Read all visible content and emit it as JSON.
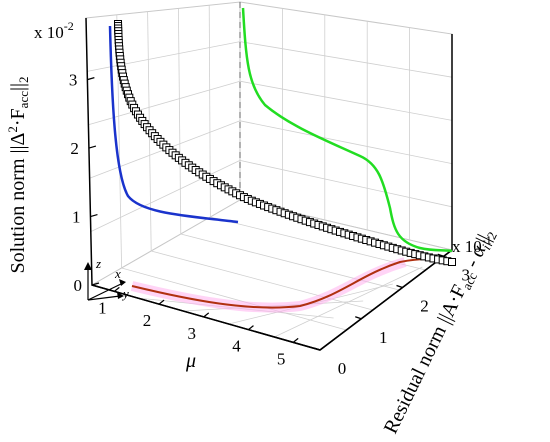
{
  "chart_data": {
    "type": "line",
    "subtype": "3d-curve-with-projections",
    "grid": true,
    "colors": {
      "main_curve": "#cc1f1f",
      "markers": "#000000",
      "projection_mu_residual": "#1a33cc",
      "projection_mu_solution": "#22dd22",
      "projection_residual_solution": "#b03010",
      "highlight": "#ff99ee"
    },
    "axes": {
      "z": {
        "label": "Solution norm ||Δ²·F_acc||₂",
        "label_prefix": "Solution norm ||Δ",
        "label_sup": "2",
        "label_mid": "·F",
        "label_sub": "acc",
        "label_suffix": "||",
        "label_sub2": "2",
        "multiplier": "x 10",
        "multiplier_exp": "-2",
        "ticks": [
          "0",
          "1",
          "2",
          "3"
        ],
        "range": [
          0,
          3.9
        ]
      },
      "x": {
        "label": "μ",
        "ticks": [
          "1",
          "2",
          "3",
          "4",
          "5"
        ],
        "range": [
          0.5,
          5.6
        ]
      },
      "y": {
        "label": "Residual norm ||A·F_acc - α_i||₂",
        "label_prefix": "Residual norm ||A·F",
        "label_sub": "acc",
        "label_mid": " - α",
        "label_sub_i": "i",
        "label_suffix": "||",
        "label_sub2": "2",
        "multiplier": "x 10",
        "multiplier_exp": "-1",
        "ticks": [
          "0",
          "1",
          "2",
          "3"
        ],
        "range": [
          0,
          3.2
        ]
      }
    },
    "triad": {
      "z": "z",
      "x": "x",
      "y": "y"
    },
    "series": [
      {
        "style": "3d curve with open square markers",
        "mu": [
          0.55,
          0.6,
          0.7,
          0.8,
          1.0,
          1.2,
          1.5,
          1.8,
          2.1,
          2.4,
          2.7,
          3.0,
          3.3,
          3.5,
          3.7,
          3.9,
          4.05,
          4.2,
          4.35,
          4.5,
          4.65,
          4.8,
          5.0,
          5.2,
          5.45
        ],
        "residual": [
          0.1,
          0.1,
          0.12,
          0.15,
          0.22,
          0.3,
          0.45,
          0.6,
          0.75,
          0.9,
          1.05,
          1.2,
          1.4,
          1.55,
          1.7,
          1.85,
          2.0,
          2.15,
          2.3,
          2.45,
          2.6,
          2.72,
          2.85,
          2.95,
          3.05
        ],
        "solution": [
          3.75,
          3.4,
          3.0,
          2.7,
          2.35,
          2.1,
          1.8,
          1.6,
          1.45,
          1.32,
          1.22,
          1.12,
          1.02,
          0.95,
          0.88,
          0.8,
          0.72,
          0.64,
          0.55,
          0.45,
          0.35,
          0.25,
          0.15,
          0.06,
          0.02
        ]
      }
    ]
  }
}
